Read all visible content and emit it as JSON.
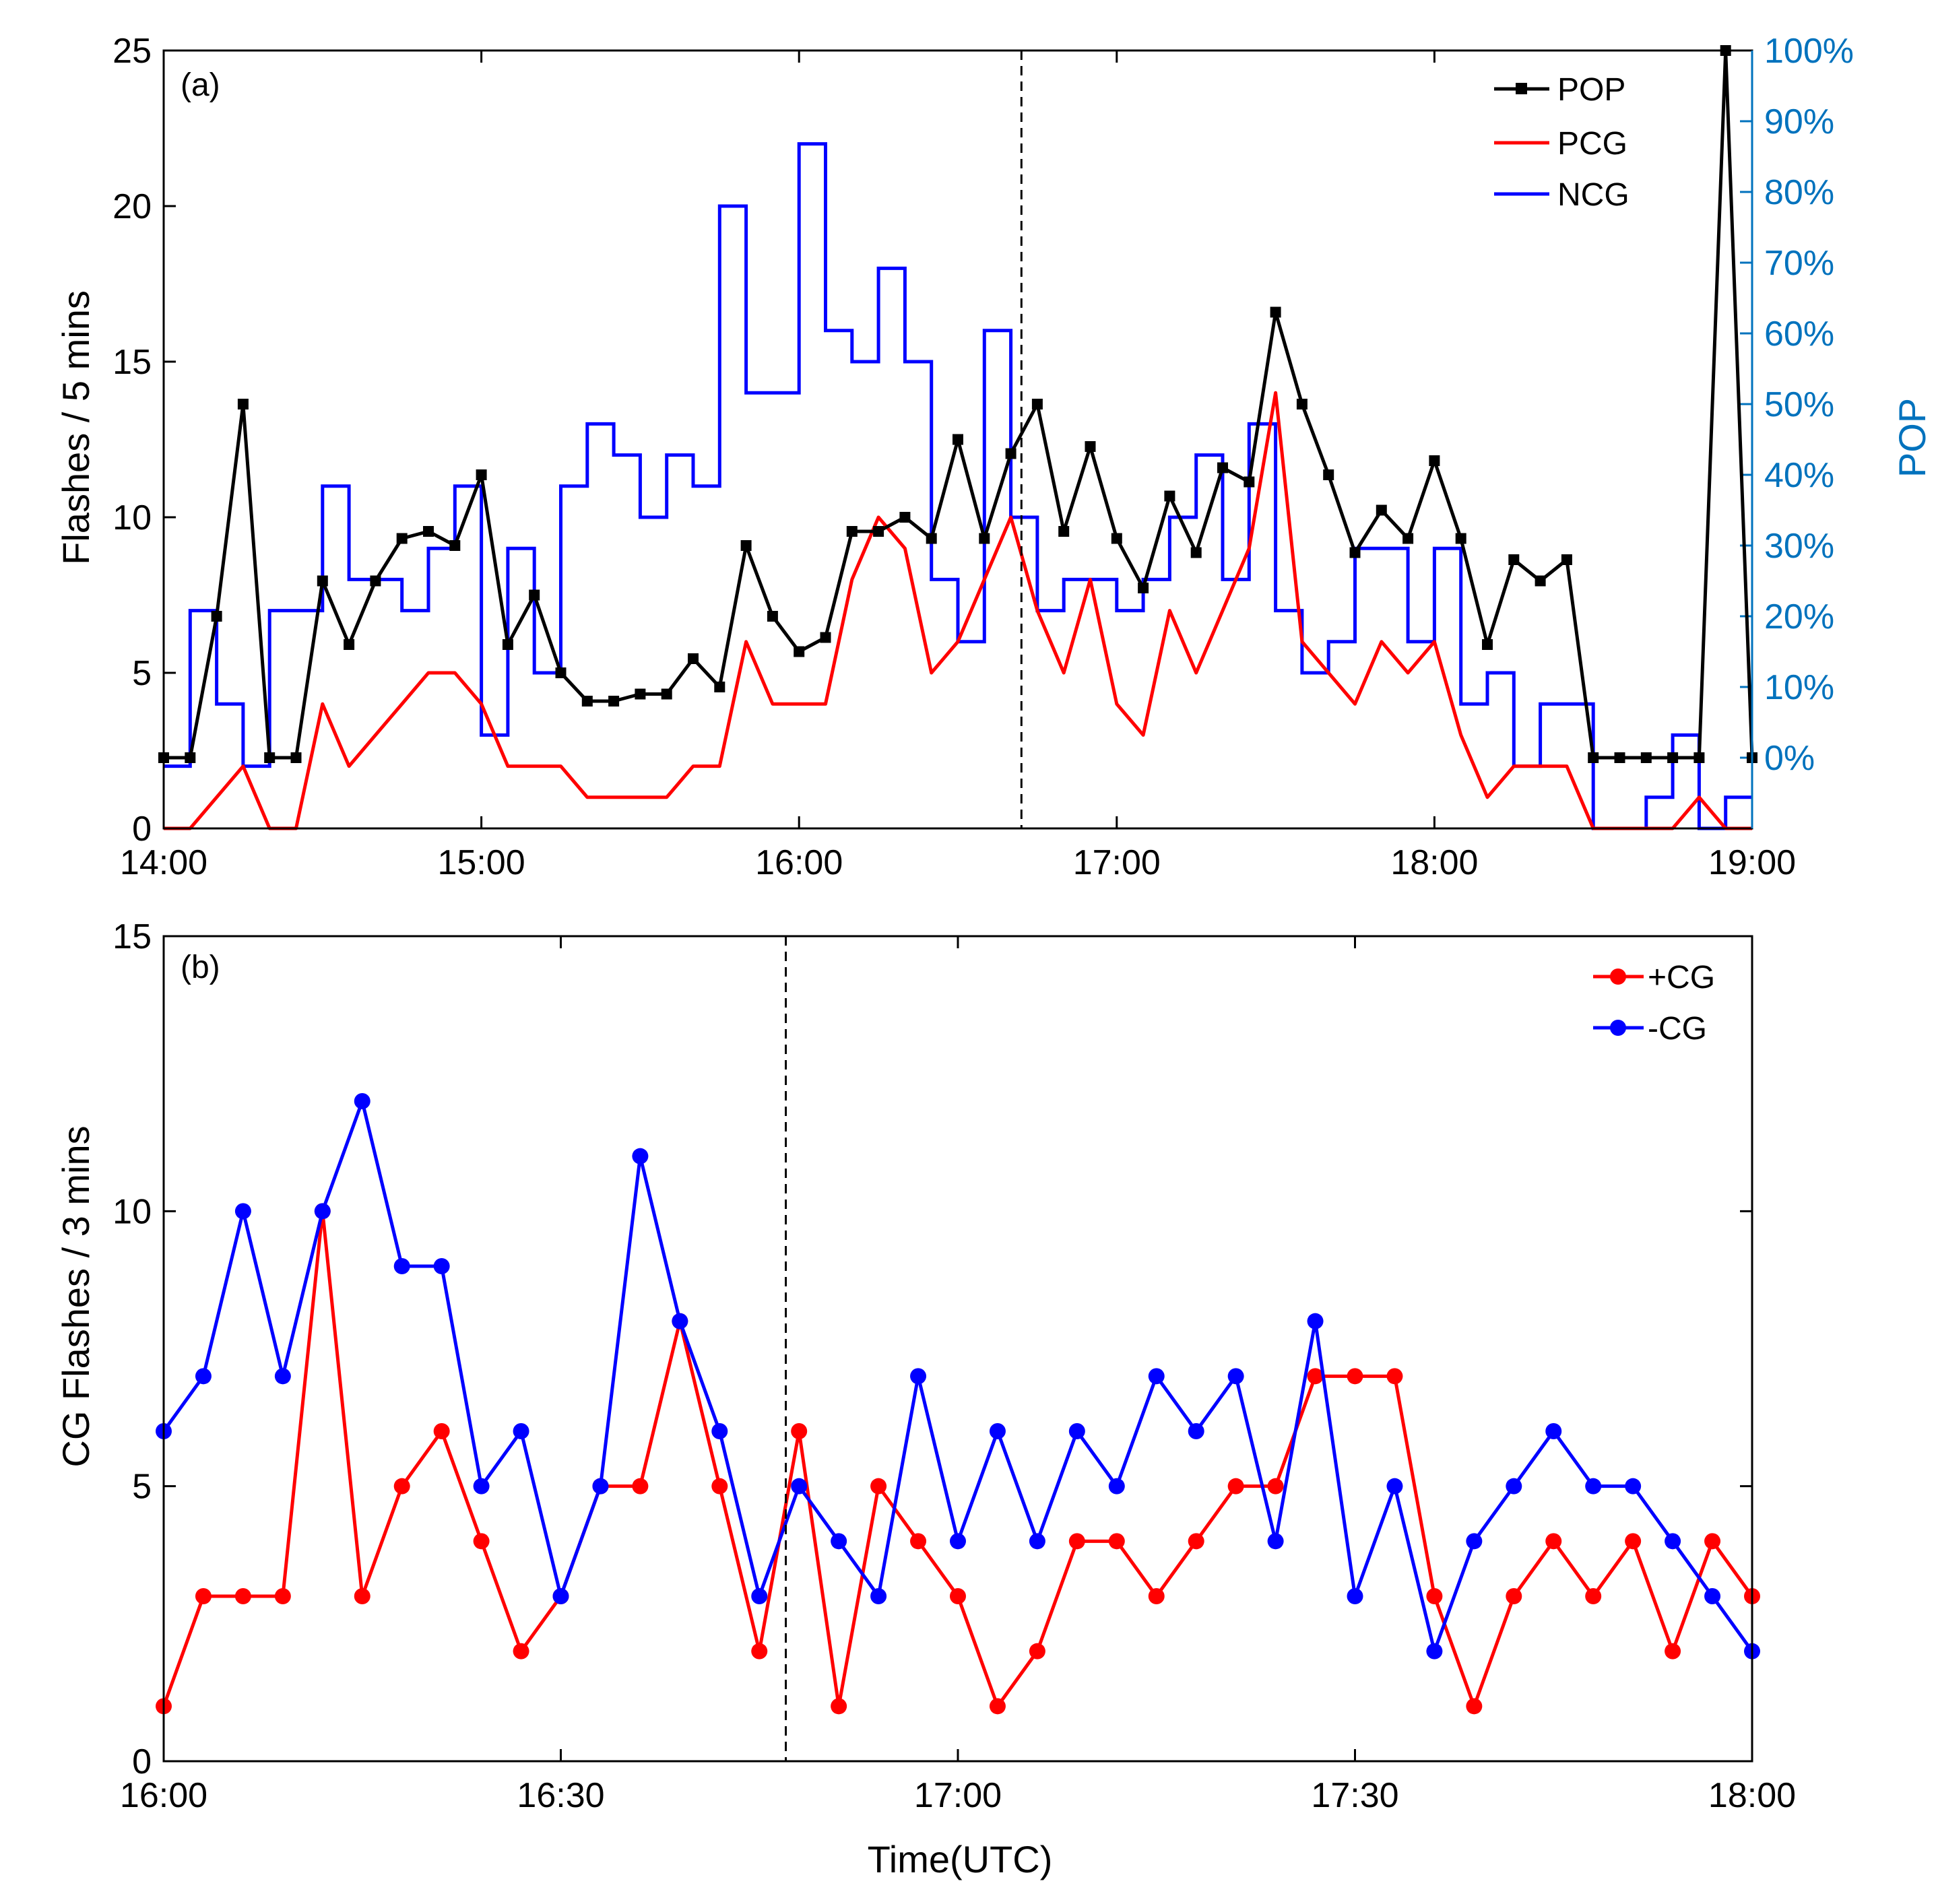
{
  "colors": {
    "pop": "#000000",
    "pcg": "#FF0000",
    "ncg": "#0000FF",
    "pos_cg": "#FF0000",
    "neg_cg": "#0000FF",
    "right_axis": "#0072BD"
  },
  "chart_data": [
    {
      "panel": "(a)",
      "type": "line",
      "xlabel": "",
      "ylabel": "Flashes / 5 mins",
      "y2label": "POP",
      "xlim": [
        0,
        300
      ],
      "ylim": [
        0,
        25
      ],
      "y2lim": [
        -10,
        100
      ],
      "xticks": [
        0,
        60,
        120,
        180,
        240,
        300
      ],
      "xticklabels": [
        "14:00",
        "15:00",
        "16:00",
        "17:00",
        "18:00",
        "19:00"
      ],
      "yticks": [
        0,
        5,
        10,
        15,
        20,
        25
      ],
      "yticklabels": [
        "0",
        "5",
        "10",
        "15",
        "20",
        "25"
      ],
      "y2ticks": [
        0,
        10,
        20,
        30,
        40,
        50,
        60,
        70,
        80,
        90,
        100
      ],
      "y2ticklabels": [
        "0%",
        "10%",
        "20%",
        "30%",
        "40%",
        "50%",
        "60%",
        "70%",
        "80%",
        "90%",
        "100%"
      ],
      "marker_line_minute": 162,
      "legend": [
        "POP",
        "PCG",
        "NCG"
      ],
      "series": [
        {
          "name": "NCG",
          "style": "stairs",
          "axis": "left",
          "x": [
            0,
            5,
            10,
            15,
            20,
            25,
            30,
            35,
            40,
            45,
            50,
            55,
            60,
            65,
            70,
            75,
            80,
            85,
            90,
            95,
            100,
            105,
            110,
            115,
            120,
            125,
            130,
            135,
            140,
            145,
            150,
            155,
            160,
            165,
            170,
            175,
            180,
            185,
            190,
            195,
            200,
            205,
            210,
            215,
            220,
            225,
            230,
            235,
            240,
            245,
            250,
            255,
            260,
            265,
            270,
            275,
            280,
            285,
            290,
            295
          ],
          "values": [
            2,
            7,
            4,
            2,
            7,
            7,
            11,
            8,
            8,
            7,
            9,
            11,
            3,
            9,
            5,
            11,
            13,
            12,
            10,
            12,
            11,
            20,
            14,
            14,
            22,
            16,
            15,
            18,
            15,
            8,
            6,
            16,
            10,
            7,
            8,
            8,
            7,
            8,
            10,
            12,
            8,
            13,
            7,
            5,
            6,
            9,
            9,
            6,
            9,
            4,
            5,
            2,
            4,
            4,
            0,
            0,
            1,
            3,
            0,
            1
          ]
        },
        {
          "name": "PCG",
          "style": "line",
          "axis": "left",
          "x": [
            0,
            5,
            10,
            15,
            20,
            25,
            30,
            35,
            40,
            45,
            50,
            55,
            60,
            65,
            70,
            75,
            80,
            85,
            90,
            95,
            100,
            105,
            110,
            115,
            120,
            125,
            130,
            135,
            140,
            145,
            150,
            155,
            160,
            165,
            170,
            175,
            180,
            185,
            190,
            195,
            200,
            205,
            210,
            215,
            220,
            225,
            230,
            235,
            240,
            245,
            250,
            255,
            260,
            265,
            270,
            275,
            280,
            285,
            290,
            295,
            300
          ],
          "values": [
            0,
            0,
            1,
            2,
            0,
            0,
            4,
            2,
            3,
            4,
            5,
            5,
            4,
            2,
            2,
            2,
            1,
            1,
            1,
            1,
            2,
            2,
            6,
            4,
            4,
            4,
            8,
            10,
            9,
            5,
            6,
            8,
            10,
            7,
            5,
            8,
            4,
            3,
            7,
            5,
            7,
            9,
            14,
            6,
            5,
            4,
            6,
            5,
            6,
            3,
            1,
            2,
            2,
            2,
            0,
            0,
            0,
            0,
            1,
            0,
            0
          ]
        },
        {
          "name": "POP",
          "style": "line-marker",
          "axis": "right",
          "x": [
            0,
            5,
            10,
            15,
            20,
            25,
            30,
            35,
            40,
            45,
            50,
            55,
            60,
            65,
            70,
            75,
            80,
            85,
            90,
            95,
            100,
            105,
            110,
            115,
            120,
            125,
            130,
            135,
            140,
            145,
            150,
            155,
            160,
            165,
            170,
            175,
            180,
            185,
            190,
            195,
            200,
            205,
            210,
            215,
            220,
            225,
            230,
            235,
            240,
            245,
            250,
            255,
            260,
            265,
            270,
            275,
            280,
            285,
            290,
            295,
            300
          ],
          "values": [
            0,
            0,
            20,
            50,
            0,
            0,
            25,
            16,
            25,
            31,
            32,
            30,
            40,
            16,
            23,
            12,
            8,
            8,
            9,
            9,
            14,
            10,
            30,
            20,
            15,
            17,
            32,
            32,
            34,
            31,
            45,
            31,
            43,
            50,
            32,
            44,
            31,
            24,
            37,
            29,
            41,
            39,
            63,
            50,
            40,
            29,
            35,
            31,
            42,
            31,
            16,
            28,
            25,
            28,
            0,
            0,
            0,
            0,
            0,
            100,
            0
          ]
        }
      ]
    },
    {
      "panel": "(b)",
      "type": "line",
      "xlabel": "Time(UTC)",
      "ylabel": "CG Flashes / 3 mins",
      "xlim": [
        0,
        120
      ],
      "ylim": [
        0,
        15
      ],
      "xticks": [
        0,
        30,
        60,
        90,
        120
      ],
      "xticklabels": [
        "16:00",
        "16:30",
        "17:00",
        "17:30",
        "18:00"
      ],
      "yticks": [
        0,
        5,
        10,
        15
      ],
      "yticklabels": [
        "0",
        "5",
        "10",
        "15"
      ],
      "marker_line_minute": 47,
      "legend": [
        "+CG",
        "-CG"
      ],
      "series": [
        {
          "name": "+CG",
          "x": [
            0,
            3,
            6,
            9,
            12,
            15,
            18,
            21,
            24,
            27,
            30,
            33,
            36,
            39,
            42,
            45,
            48,
            51,
            54,
            57,
            60,
            63,
            66,
            69,
            72,
            75,
            78,
            81,
            84,
            87,
            90,
            93,
            96,
            99,
            102,
            105,
            108,
            111,
            114,
            117,
            120
          ],
          "values": [
            1,
            3,
            3,
            3,
            10,
            3,
            5,
            6,
            4,
            2,
            3,
            5,
            5,
            8,
            5,
            2,
            6,
            1,
            5,
            4,
            3,
            1,
            2,
            4,
            4,
            3,
            4,
            5,
            5,
            7,
            7,
            7,
            3,
            1,
            3,
            4,
            3,
            4,
            2,
            4,
            3
          ]
        },
        {
          "name": "-CG",
          "x": [
            0,
            3,
            6,
            9,
            12,
            15,
            18,
            21,
            24,
            27,
            30,
            33,
            36,
            39,
            42,
            45,
            48,
            51,
            54,
            57,
            60,
            63,
            66,
            69,
            72,
            75,
            78,
            81,
            84,
            87,
            90,
            93,
            96,
            99,
            102,
            105,
            108,
            111,
            114,
            117,
            120
          ],
          "values": [
            6,
            7,
            10,
            7,
            10,
            12,
            9,
            9,
            5,
            6,
            3,
            5,
            11,
            8,
            6,
            3,
            5,
            4,
            3,
            7,
            4,
            6,
            4,
            6,
            5,
            7,
            6,
            7,
            4,
            8,
            3,
            5,
            2,
            4,
            5,
            6,
            5,
            5,
            4,
            3,
            2
          ]
        }
      ]
    }
  ]
}
